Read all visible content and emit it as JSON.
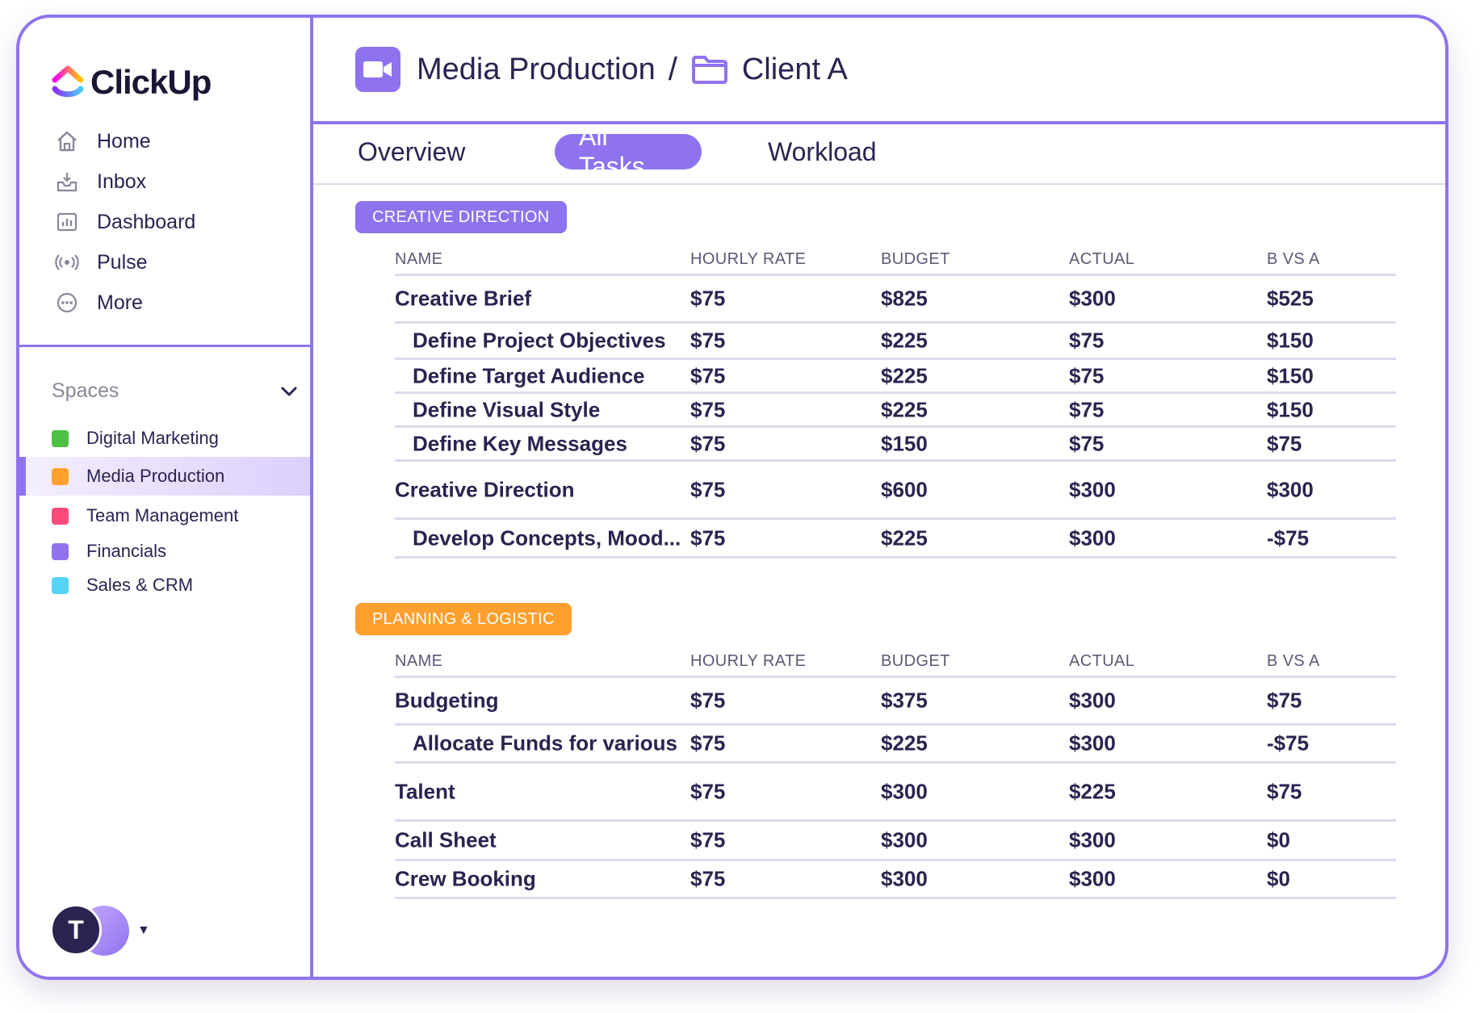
{
  "brand": {
    "name": "ClickUp"
  },
  "nav": [
    {
      "label": "Home",
      "icon": "home-icon"
    },
    {
      "label": "Inbox",
      "icon": "inbox-icon"
    },
    {
      "label": "Dashboard",
      "icon": "dashboard-icon"
    },
    {
      "label": "Pulse",
      "icon": "pulse-icon"
    },
    {
      "label": "More",
      "icon": "more-icon"
    }
  ],
  "spaces": {
    "label": "Spaces",
    "items": [
      {
        "label": "Digital Marketing",
        "color": "#4cc143"
      },
      {
        "label": "Media Production",
        "color": "#ff9f2e"
      },
      {
        "label": "Team Management",
        "color": "#fc4b7b"
      },
      {
        "label": "Financials",
        "color": "#8f73ee"
      },
      {
        "label": "Sales & CRM",
        "color": "#55d3f5"
      }
    ]
  },
  "user": {
    "initial": "T"
  },
  "breadcrumb": {
    "space": "Media Production",
    "separator": "/",
    "folder": "Client A"
  },
  "tabs": [
    {
      "label": "Overview"
    },
    {
      "label": "All Tasks"
    },
    {
      "label": "Workload"
    }
  ],
  "columns": {
    "name": "NAME",
    "rate": "HOURLY RATE",
    "budget": "BUDGET",
    "actual": "ACTUAL",
    "bva": "B VS A"
  },
  "groups": [
    {
      "label": "CREATIVE DIRECTION",
      "color": "#8f73ee",
      "rows": [
        {
          "name": "Creative Brief",
          "rate": "$75",
          "budget": "$825",
          "actual": "$300",
          "bva": "$525"
        },
        {
          "name": "Define Project Objectives",
          "rate": "$75",
          "budget": "$225",
          "actual": "$75",
          "bva": "$150"
        },
        {
          "name": "Define Target Audience",
          "rate": "$75",
          "budget": "$225",
          "actual": "$75",
          "bva": "$150"
        },
        {
          "name": "Define Visual Style",
          "rate": "$75",
          "budget": "$225",
          "actual": "$75",
          "bva": "$150"
        },
        {
          "name": "Define Key Messages",
          "rate": "$75",
          "budget": "$150",
          "actual": "$75",
          "bva": "$75"
        },
        {
          "name": "Creative Direction",
          "rate": "$75",
          "budget": "$600",
          "actual": "$300",
          "bva": "$300"
        },
        {
          "name": "Develop Concepts, Mood...",
          "rate": "$75",
          "budget": "$225",
          "actual": "$300",
          "bva": "-$75"
        }
      ]
    },
    {
      "label": "PLANNING & LOGISTIC",
      "color": "#ff9f2e",
      "rows": [
        {
          "name": "Budgeting",
          "rate": "$75",
          "budget": "$375",
          "actual": "$300",
          "bva": "$75"
        },
        {
          "name": "Allocate Funds for various",
          "rate": "$75",
          "budget": "$225",
          "actual": "$300",
          "bva": "-$75"
        },
        {
          "name": "Talent",
          "rate": "$75",
          "budget": "$300",
          "actual": "$225",
          "bva": "$75"
        },
        {
          "name": "Call Sheet",
          "rate": "$75",
          "budget": "$300",
          "actual": "$300",
          "bva": "$0"
        },
        {
          "name": "Crew Booking",
          "rate": "$75",
          "budget": "$300",
          "actual": "$300",
          "bva": "$0"
        }
      ]
    }
  ]
}
